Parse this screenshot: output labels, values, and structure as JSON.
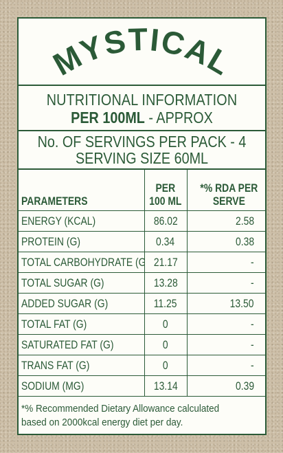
{
  "brand": "MYSTICAL",
  "info": {
    "line1": "NUTRITIONAL INFORMATION",
    "line2_bold": "PER 100ML",
    "line2_rest": " - APPROX"
  },
  "servings": {
    "line1": "No. OF SERVINGS PER PACK - 4",
    "line2": "SERVING SIZE 60ML"
  },
  "table": {
    "headers": {
      "parameters": "PARAMETERS",
      "per_line1": "PER",
      "per_line2": "100 ML",
      "rda_line1": "*% RDA PER",
      "rda_line2": "SERVE"
    },
    "rows": [
      {
        "param": "ENERGY (KCAL)",
        "per100": "86.02",
        "rda": "2.58"
      },
      {
        "param": "PROTEIN (G)",
        "per100": "0.34",
        "rda": "0.38"
      },
      {
        "param": "TOTAL CARBOHYDRATE (G)",
        "per100": "21.17",
        "rda": "-"
      },
      {
        "param": "TOTAL SUGAR (G)",
        "per100": "13.28",
        "rda": "-"
      },
      {
        "param": "ADDED SUGAR (G)",
        "per100": "11.25",
        "rda": "13.50"
      },
      {
        "param": "TOTAL FAT (G)",
        "per100": "0",
        "rda": "-"
      },
      {
        "param": "SATURATED FAT (G)",
        "per100": "0",
        "rda": "-"
      },
      {
        "param": "TRANS FAT (G)",
        "per100": "0",
        "rda": "-"
      },
      {
        "param": "SODIUM (MG)",
        "per100": "13.14",
        "rda": "0.39"
      }
    ]
  },
  "footnote": {
    "line1": "*% Recommended Dietary Allowance calculated",
    "line2": "based on 2000kcal energy diet per day."
  },
  "colors": {
    "green": "#2b5a37",
    "card_bg": "#fdfdf8",
    "kraft": "#cdbfa8"
  }
}
